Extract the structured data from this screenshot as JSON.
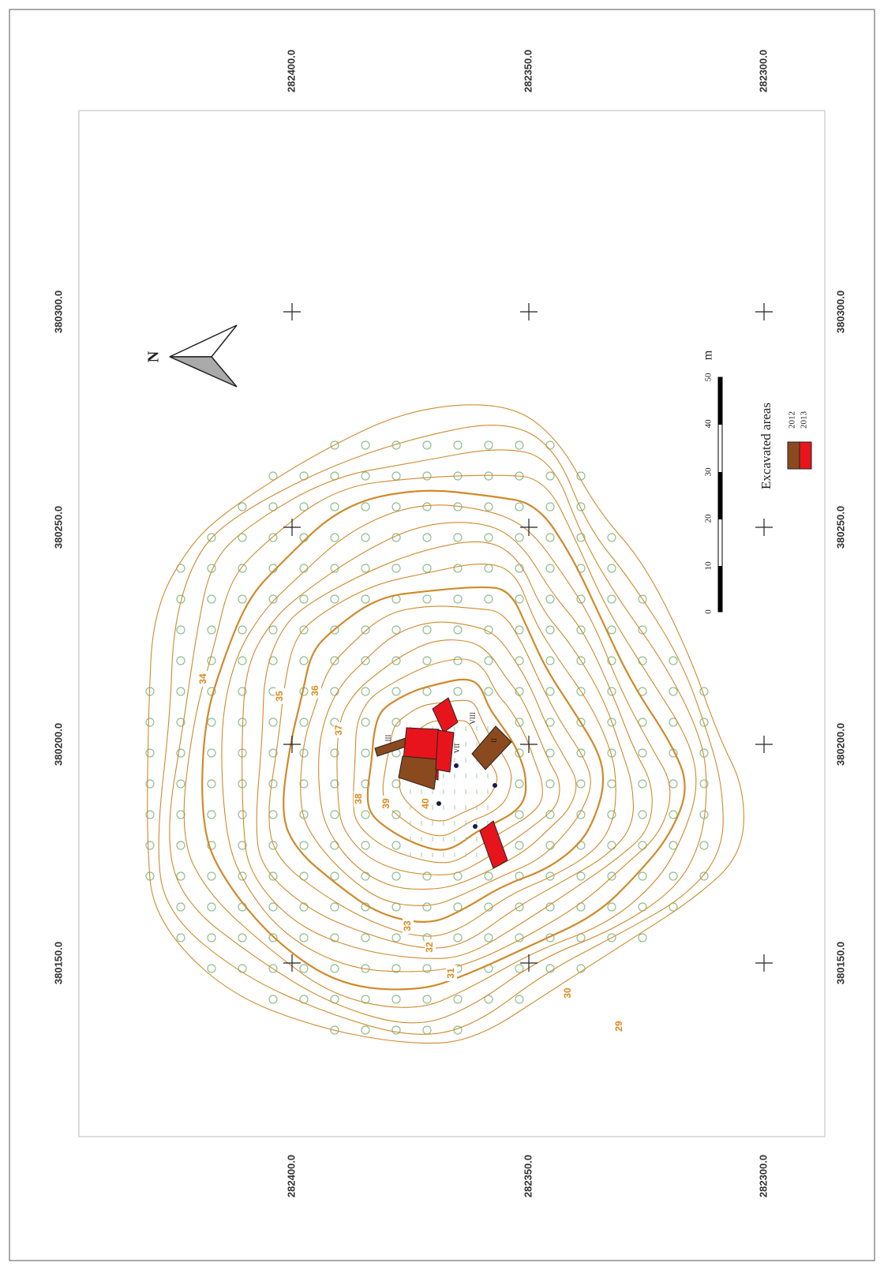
{
  "map": {
    "top_labels": [
      "282400.0",
      "282350.0",
      "282300.0"
    ],
    "bottom_labels": [
      "282400.0",
      "282350.0",
      "282300.0"
    ],
    "left_labels": [
      "380300.0",
      "380250.0",
      "380200.0",
      "380150.0"
    ],
    "right_labels": [
      "380300.0",
      "380250.0",
      "380200.0",
      "380150.0"
    ],
    "north": "N",
    "contour_labels": [
      "34",
      "35",
      "36",
      "37",
      "38",
      "39",
      "40",
      "33",
      "32",
      "31",
      "30",
      "29"
    ],
    "trench_labels": [
      "III",
      "VIII",
      "VII",
      "II"
    ],
    "legend": {
      "title": "Excavated areas",
      "items": [
        "2012",
        "2013"
      ]
    },
    "scale": {
      "ticks": [
        "0",
        "10",
        "20",
        "30",
        "40",
        "50"
      ],
      "unit": "m"
    }
  }
}
